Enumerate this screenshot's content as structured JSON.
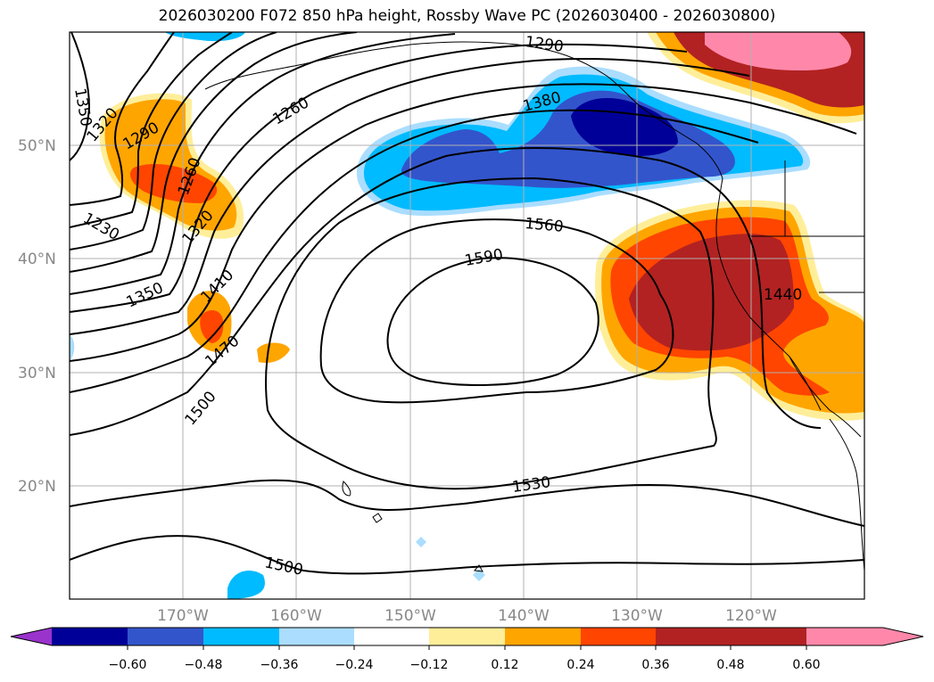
{
  "title": "2026030200 F072 850 hPa height, Rossby Wave PC (2026030400 - 2026030800)",
  "lat_labels": [
    "50°N",
    "40°N",
    "30°N",
    "20°N"
  ],
  "lon_labels": [
    "170°W",
    "160°W",
    "150°W",
    "140°W",
    "130°W",
    "120°W"
  ],
  "contour_labels": [
    "1350",
    "1320",
    "1290",
    "1260",
    "1230",
    "1260",
    "1290",
    "1320",
    "1350",
    "1410",
    "1470",
    "1500",
    "1380",
    "1560",
    "1590",
    "1530",
    "1500",
    "1440"
  ],
  "colorbar": {
    "ticks": [
      "−0.60",
      "−0.48",
      "−0.36",
      "−0.24",
      "−0.12",
      "0.12",
      "0.24",
      "0.36",
      "0.48",
      "0.60"
    ],
    "colors": [
      "#9933cc",
      "#000099",
      "#3355cc",
      "#00bbff",
      "#aaddff",
      "#ffffff",
      "#ffee99",
      "#ffa500",
      "#ff4500",
      "#b22222",
      "#ff88aa"
    ]
  }
}
